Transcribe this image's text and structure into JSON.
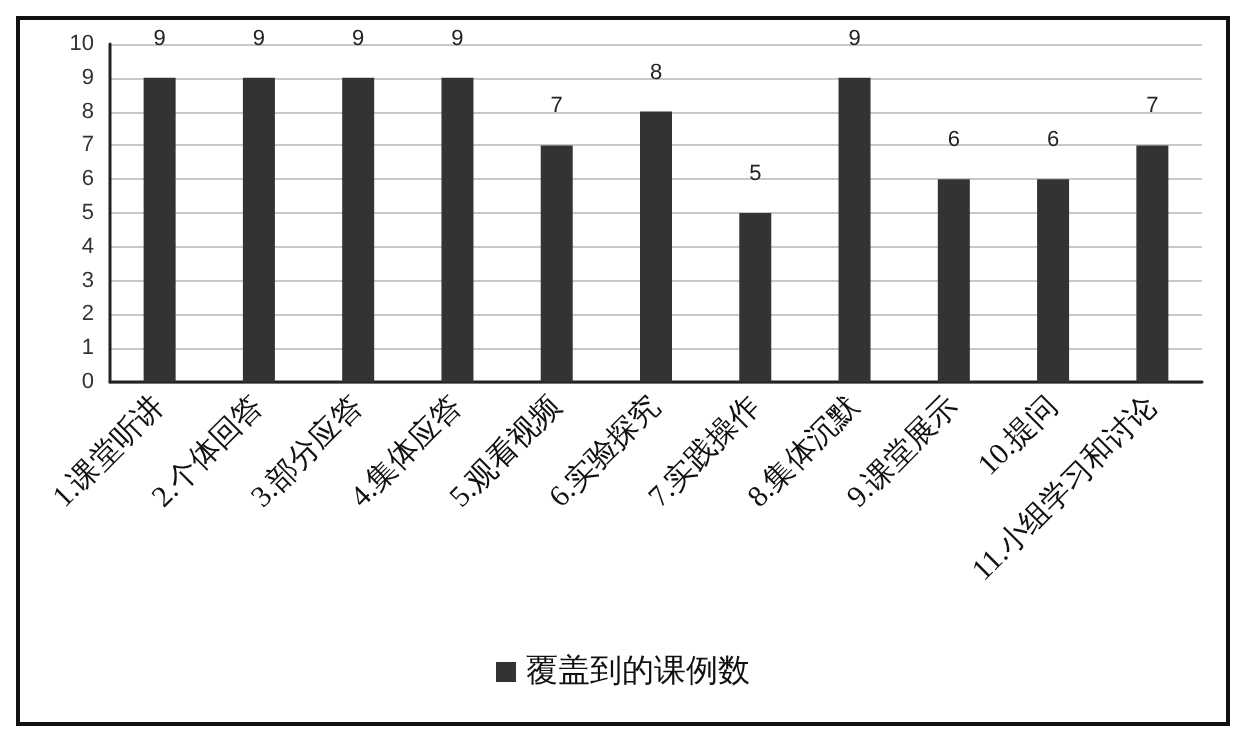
{
  "chart_data": {
    "type": "bar",
    "categories": [
      "1.课堂听讲",
      "2.个体回答",
      "3.部分应答",
      "4.集体应答",
      "5.观看视频",
      "6.实验探究",
      "7.实践操作",
      "8.集体沉默",
      "9.课堂展示",
      "10.提问",
      "11.小组学习和讨论"
    ],
    "series": [
      {
        "name": "覆盖到的课例数",
        "color": "#333333",
        "values": [
          9,
          9,
          9,
          9,
          7,
          8,
          5,
          9,
          6,
          6,
          7
        ]
      }
    ],
    "ylim": [
      0,
      10
    ],
    "yticks": [
      0,
      1,
      2,
      3,
      4,
      5,
      6,
      7,
      8,
      9,
      10
    ],
    "grid": "y",
    "legend": "bottom",
    "data_labels": true
  }
}
